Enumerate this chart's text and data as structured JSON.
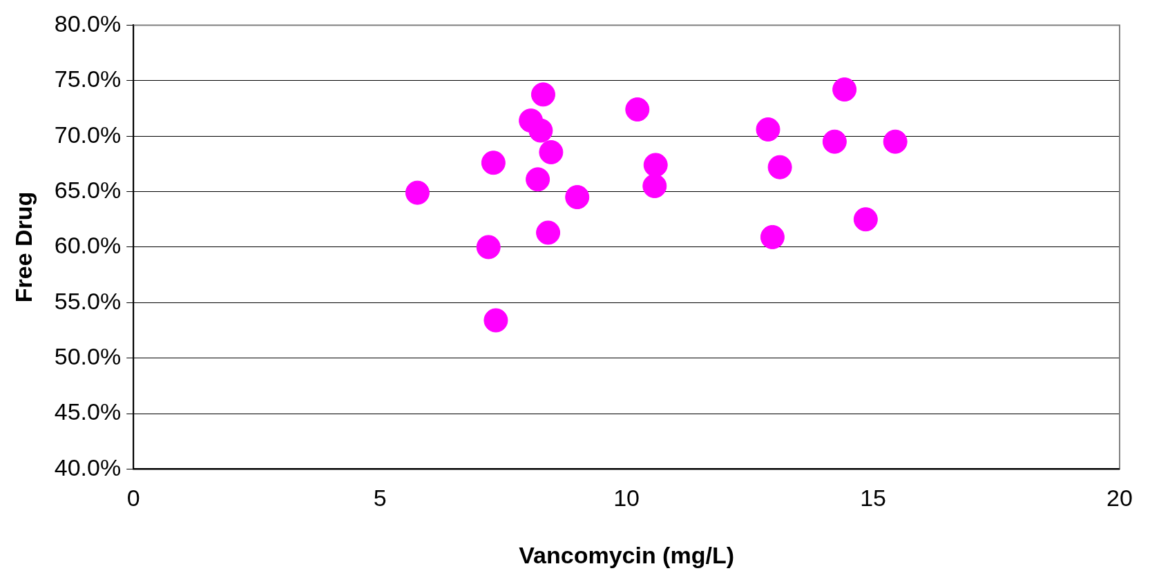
{
  "chart_data": {
    "type": "scatter",
    "xlabel": "Vancomycin (mg/L)",
    "ylabel": "Free Drug",
    "xlim": [
      0,
      20
    ],
    "xticks": [
      0,
      5,
      10,
      15,
      20
    ],
    "ylim": [
      40,
      80
    ],
    "yticks": [
      {
        "value": 40,
        "label": "40.0%"
      },
      {
        "value": 45,
        "label": "45.0%"
      },
      {
        "value": 50,
        "label": "50.0%"
      },
      {
        "value": 55,
        "label": "55.0%"
      },
      {
        "value": 60,
        "label": "60.0%"
      },
      {
        "value": 65,
        "label": "65.0%"
      },
      {
        "value": 70,
        "label": "70.0%"
      },
      {
        "value": 75,
        "label": "75.0%"
      },
      {
        "value": 80,
        "label": "80.0%"
      }
    ],
    "grid": "y",
    "legend": false,
    "marker": "circle",
    "series": [
      {
        "color": "#ff00ff",
        "x": [
          5.76,
          7.2,
          7.35,
          7.3,
          8.06,
          8.31,
          8.26,
          8.47,
          8.2,
          8.41,
          9.0,
          10.22,
          10.59,
          10.57,
          12.87,
          12.96,
          13.11,
          14.22,
          14.42,
          14.85,
          15.45
        ],
        "values": [
          64.9,
          60.0,
          53.4,
          67.6,
          71.4,
          73.75,
          70.5,
          68.55,
          66.1,
          61.3,
          64.5,
          72.4,
          67.4,
          65.5,
          70.6,
          60.9,
          67.2,
          69.5,
          74.2,
          62.5,
          69.5
        ]
      }
    ]
  }
}
